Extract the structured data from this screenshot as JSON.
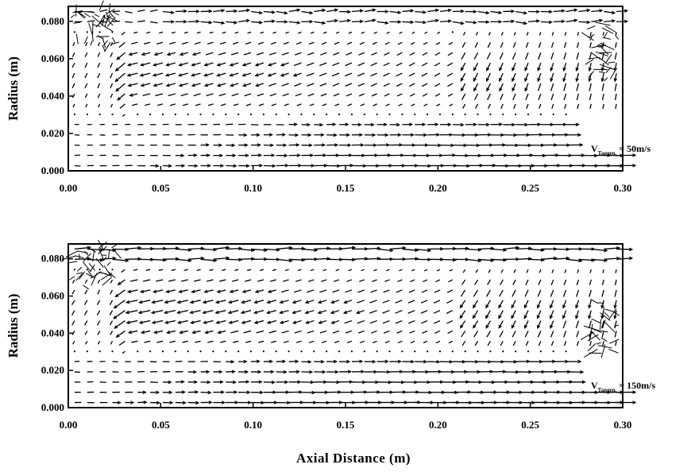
{
  "chart_data": [
    {
      "type": "vector-field",
      "xlim": [
        0.0,
        0.3
      ],
      "ylim": [
        0.0,
        0.088
      ],
      "ylabel": "Radius (m)",
      "xticks": [
        "0.00",
        "0.05",
        "0.10",
        "0.15",
        "0.20",
        "0.25",
        "0.30"
      ],
      "yticks": [
        "0.000",
        "0.020",
        "0.040",
        "0.060",
        "0.080"
      ],
      "annotation": {
        "symbol": "V",
        "subscript": "Tangen.",
        "rest": "= 50m/s"
      },
      "inlet_speed": 50
    },
    {
      "type": "vector-field",
      "xlim": [
        0.0,
        0.3
      ],
      "ylim": [
        0.0,
        0.088
      ],
      "ylabel": "Radius (m)",
      "xticks": [
        "0.00",
        "0.05",
        "0.10",
        "0.15",
        "0.20",
        "0.25",
        "0.30"
      ],
      "yticks": [
        "0.000",
        "0.020",
        "0.040",
        "0.060",
        "0.080"
      ],
      "annotation": {
        "symbol": "V",
        "subscript": "Tangen.",
        "rest": "= 150m/s"
      },
      "inlet_speed": 150
    }
  ],
  "xlabel": "Axial  Distance (m)"
}
